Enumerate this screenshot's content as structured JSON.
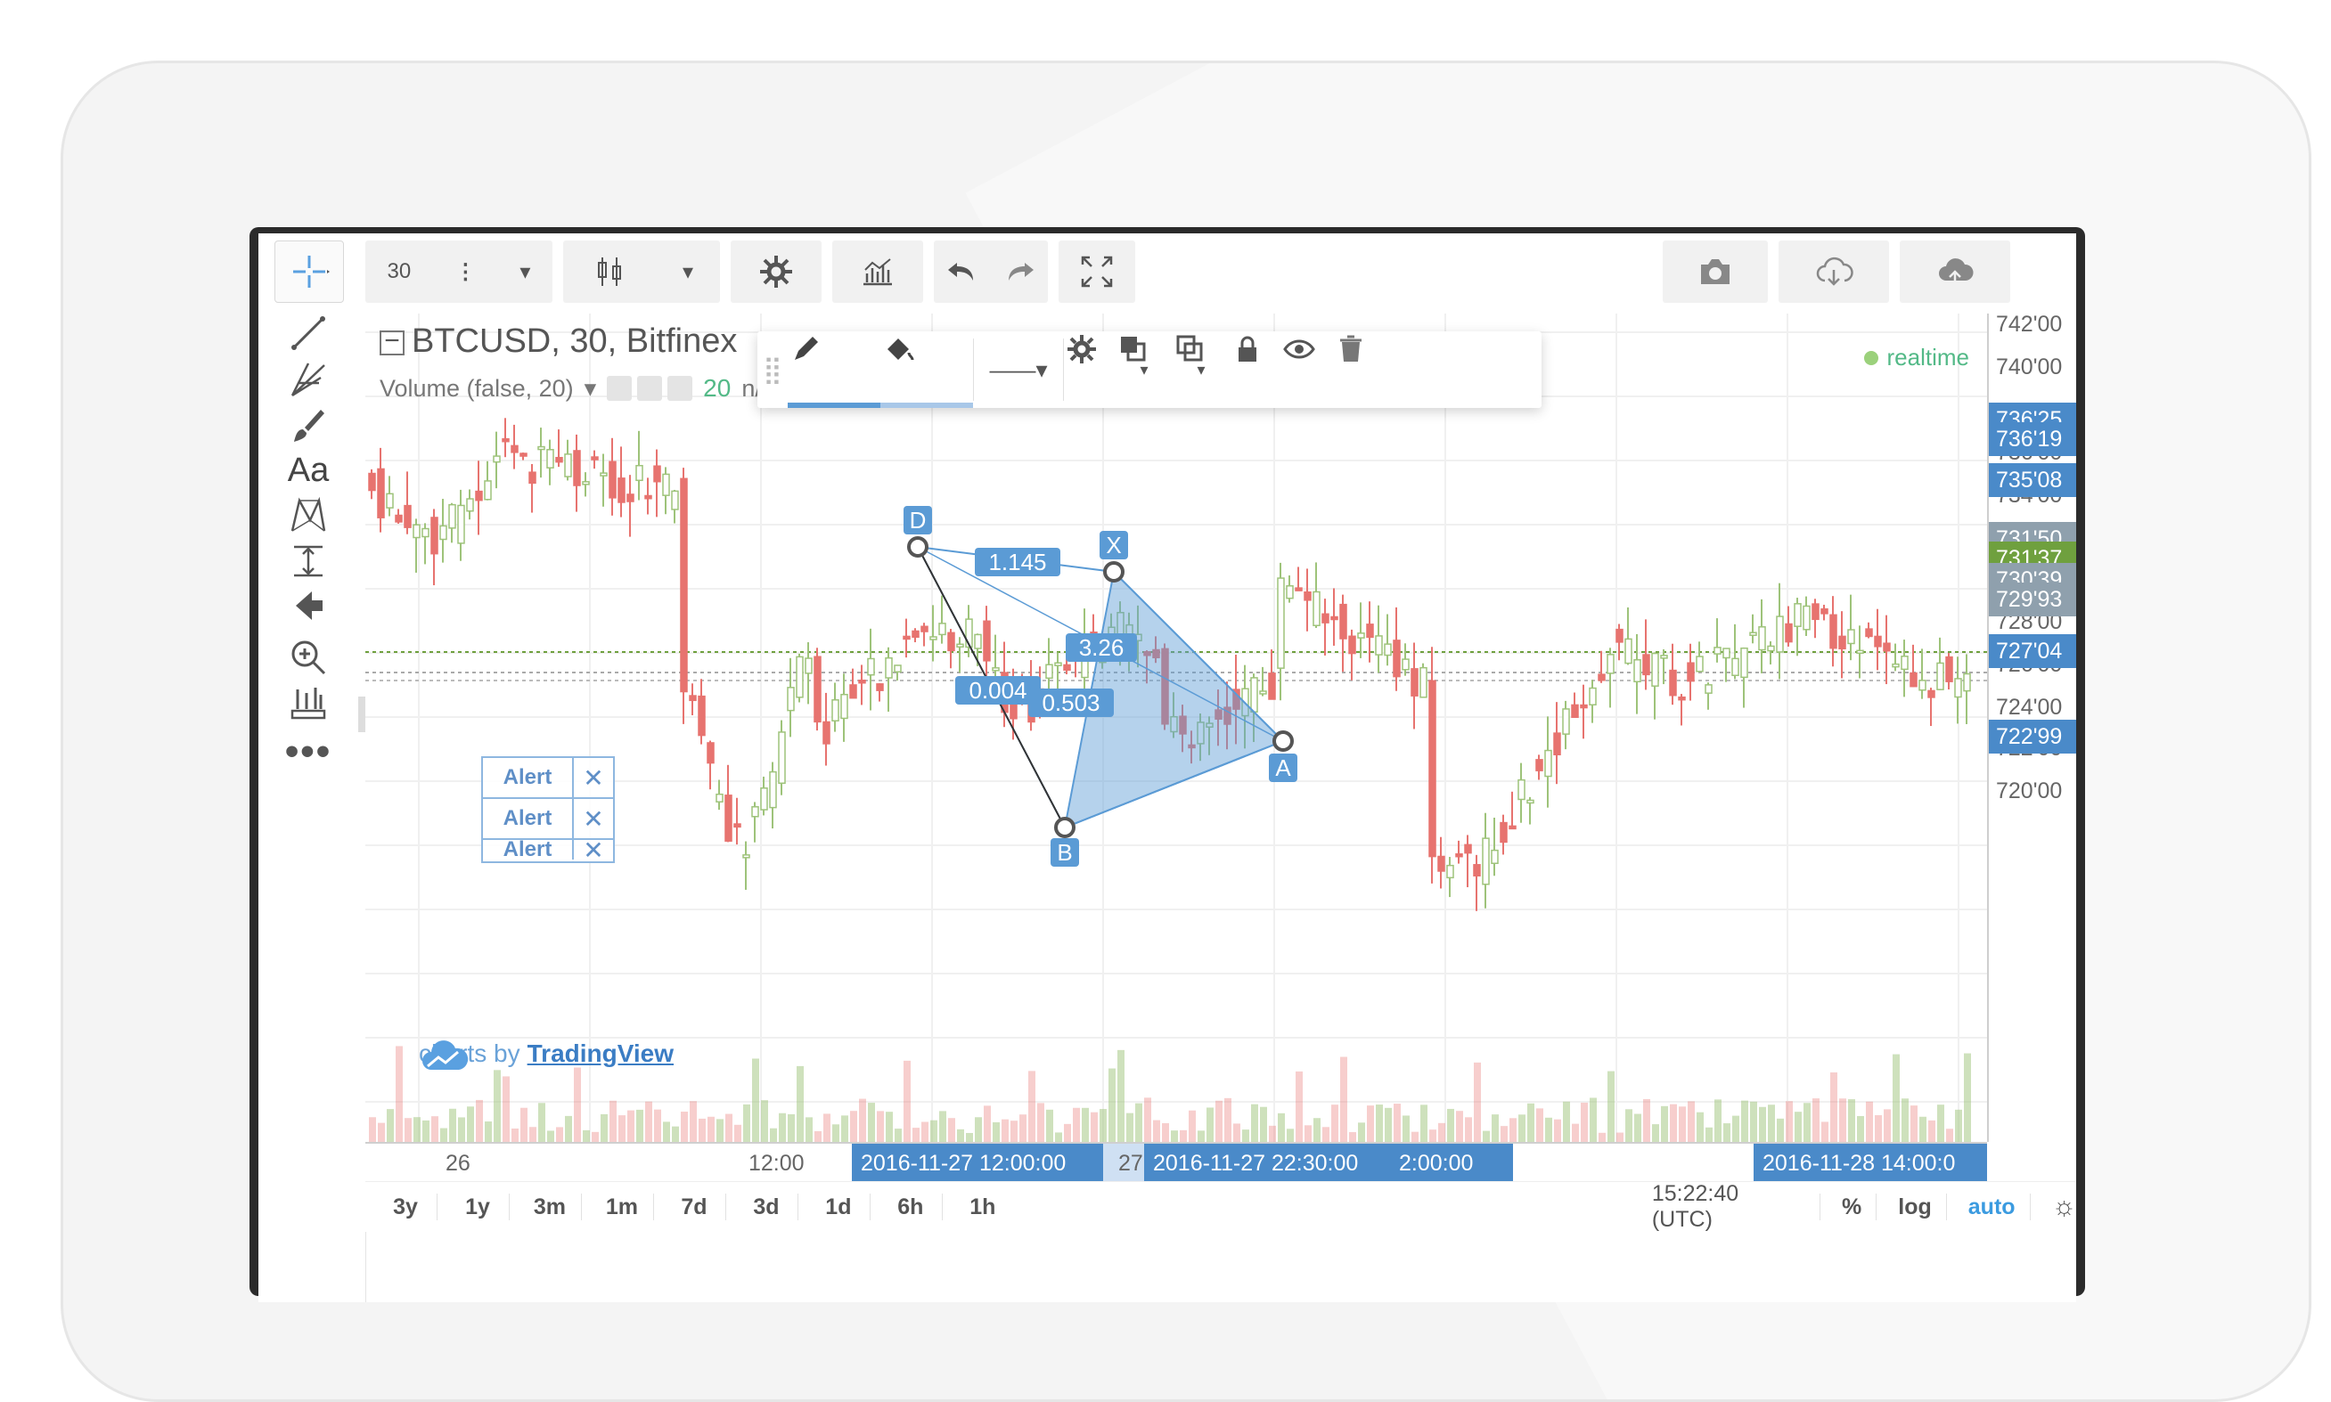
{
  "symbol_legend": "BTCUSD, 30, Bitfinex",
  "volume_legend": {
    "name": "Volume (false, 20)",
    "value": "20",
    "na": "n/a"
  },
  "realtime_label": "realtime",
  "top_toolbar": {
    "interval": "30"
  },
  "alerts": [
    "Alert",
    "Alert",
    "Alert"
  ],
  "watermark": {
    "prefix": "charts by ",
    "brand": "TradingView"
  },
  "pattern": {
    "points": {
      "D": "D",
      "X": "X",
      "A": "A",
      "B": "B"
    },
    "ratios": {
      "dx": "1.145",
      "mid": "3.26",
      "db": "0.004",
      "xb": "0.503"
    }
  },
  "price_axis": {
    "ticks": [
      "742'00",
      "740'00",
      "736'00",
      "734'00",
      "728'00",
      "726'00",
      "724'00",
      "722'00",
      "720'00"
    ],
    "tags": [
      {
        "label": "736'25",
        "color": "#4a8ac9"
      },
      {
        "label": "736'19",
        "color": "#4a8ac9"
      },
      {
        "label": "735'08",
        "color": "#4a8ac9"
      },
      {
        "label": "731'50",
        "color": "#8fa0ad"
      },
      {
        "label": "731'37",
        "color": "#6fa03e"
      },
      {
        "label": "730'39",
        "color": "#8fa0ad"
      },
      {
        "label": "729'93",
        "color": "#8fa0ad"
      },
      {
        "label": "727'04",
        "color": "#4a8ac9"
      },
      {
        "label": "722'99",
        "color": "#4a8ac9"
      }
    ]
  },
  "time_axis": {
    "ticks": [
      "26",
      "12:00",
      "27"
    ],
    "tags": [
      "2016-11-27 12:00:00",
      "2016-11-27 22:30:00",
      "2:00:00",
      "2016-11-28 14:00:0"
    ]
  },
  "bottom_bar": {
    "ranges": [
      "3y",
      "1y",
      "3m",
      "1m",
      "7d",
      "3d",
      "1d",
      "6h",
      "1h"
    ],
    "clock": "15:22:40 (UTC)",
    "percent": "%",
    "log": "log",
    "auto": "auto"
  },
  "colors": {
    "up": "#9ec37a",
    "down": "#e7736f",
    "pattern": "#5b9bd5",
    "accent": "#4a8ac9"
  }
}
